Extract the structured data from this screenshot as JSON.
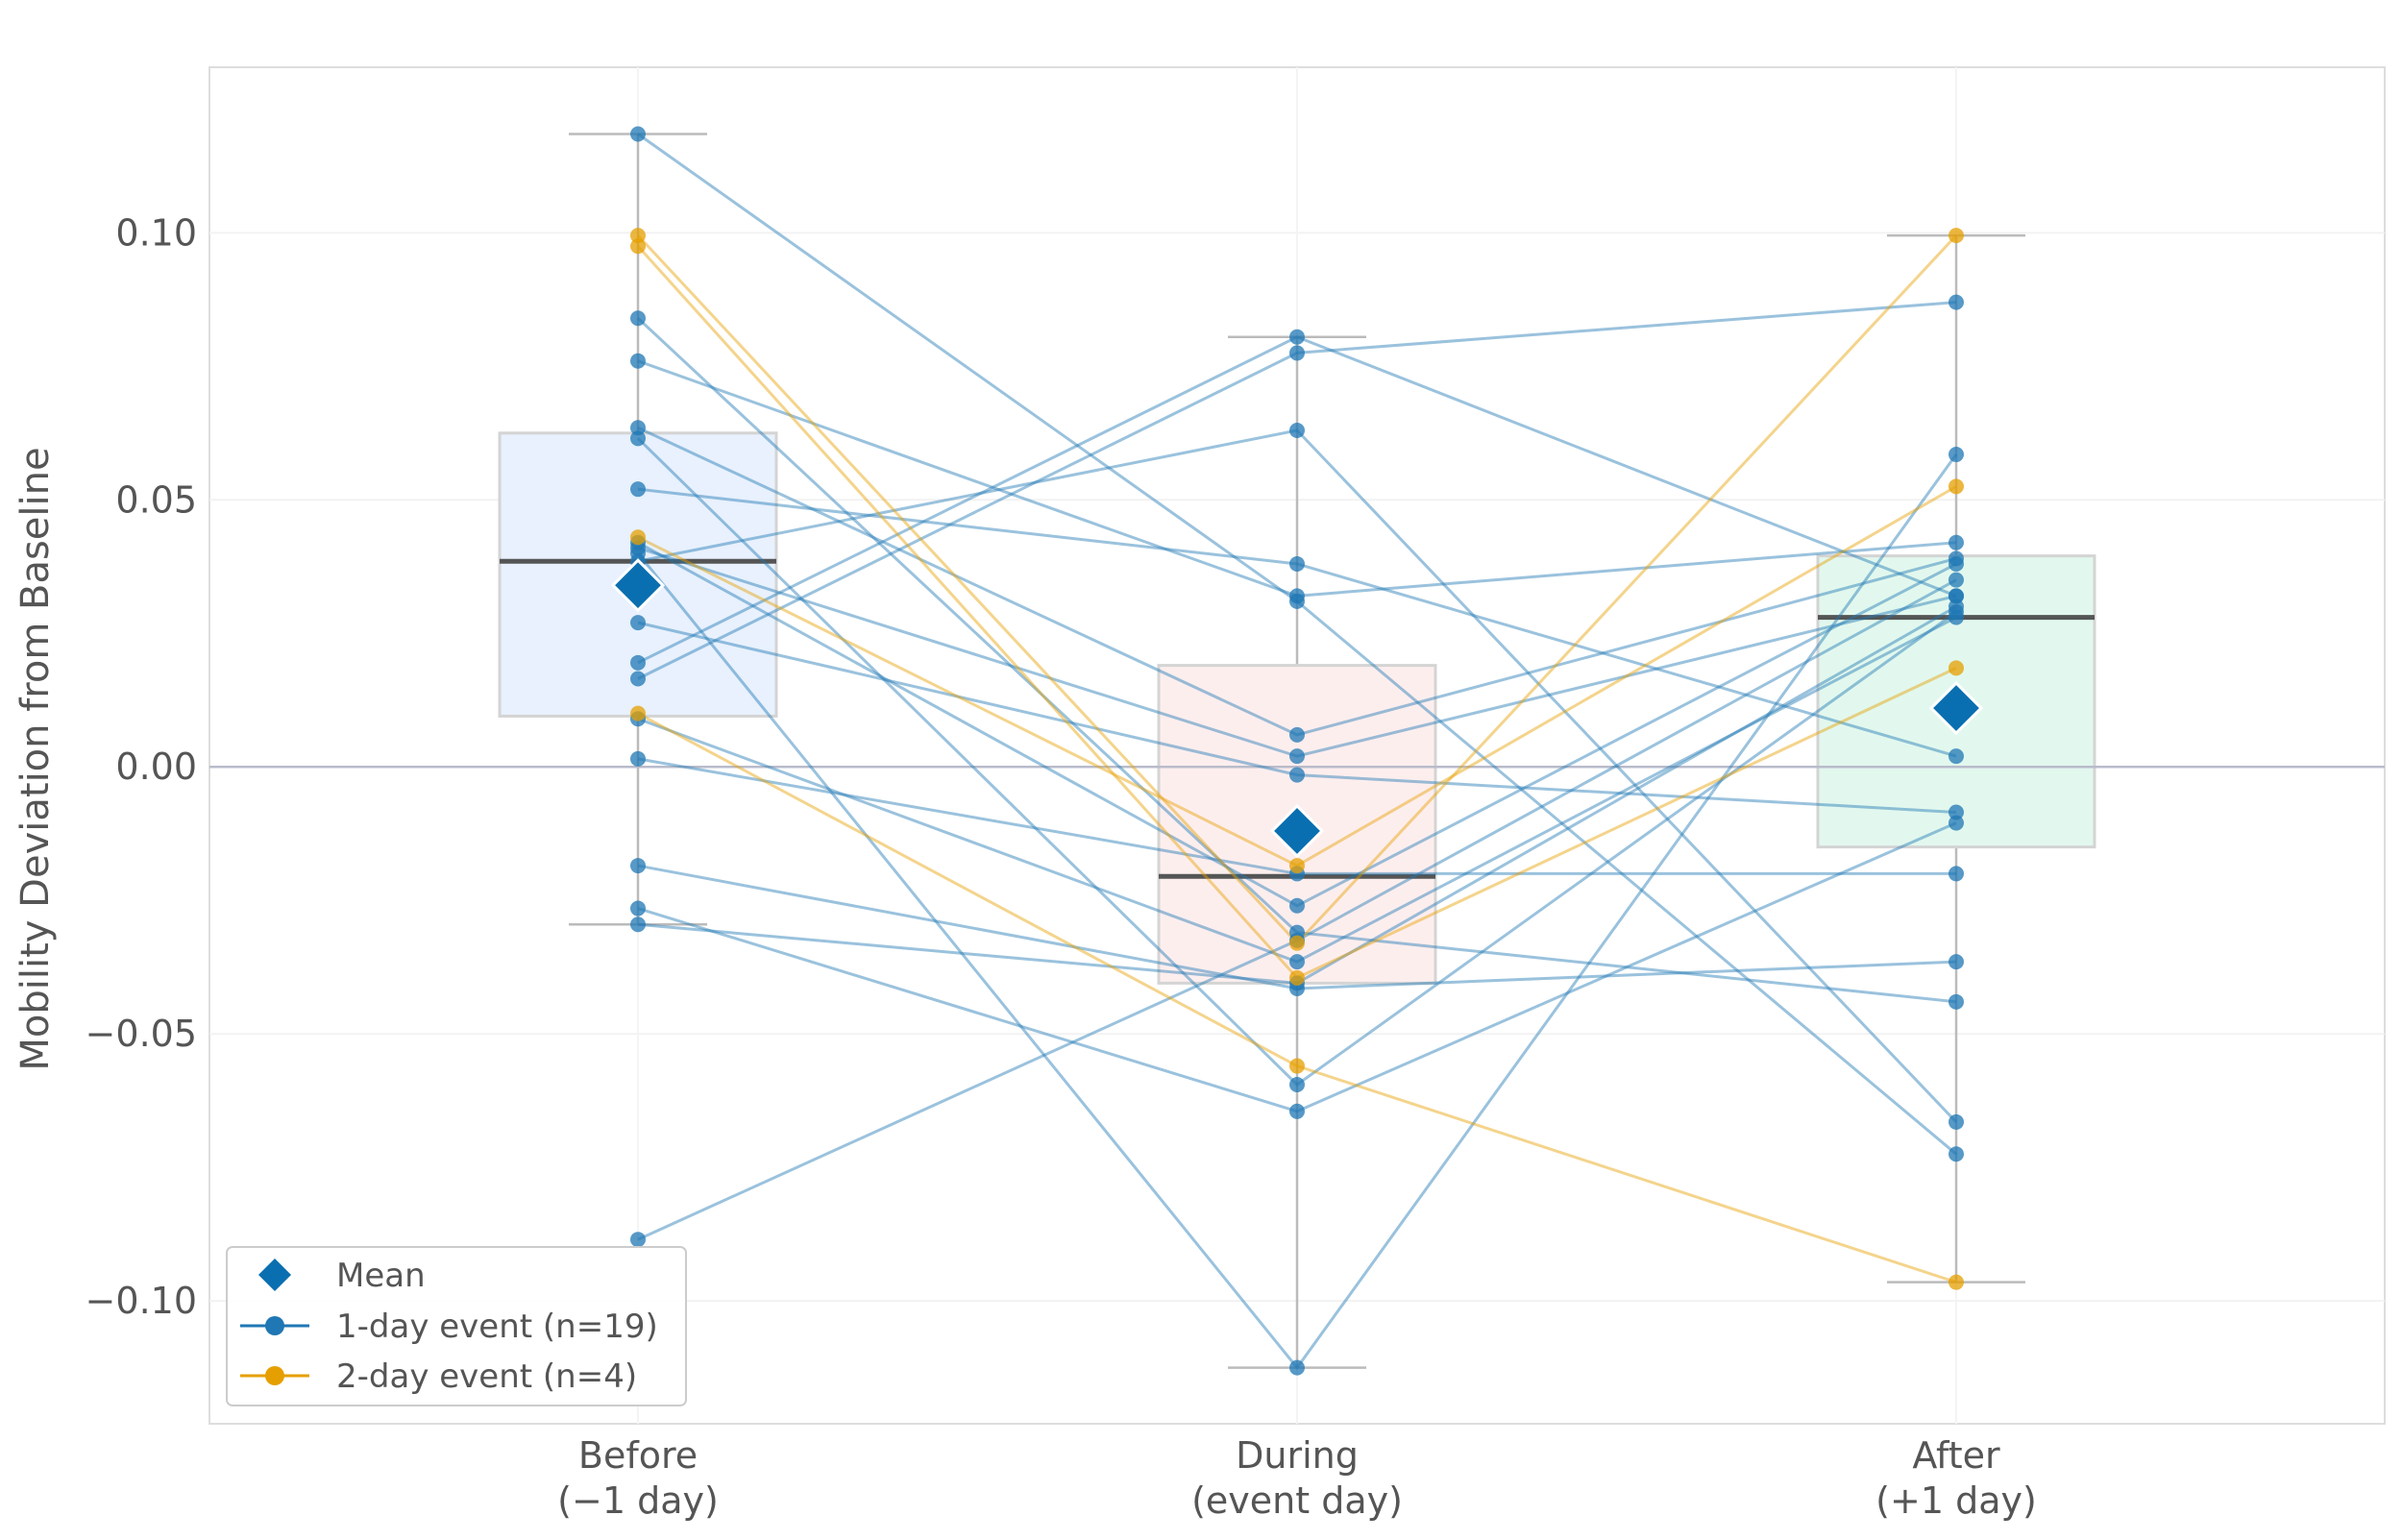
{
  "chart_data": {
    "type": "box-scatter",
    "title": "",
    "xlabel": "",
    "ylabel": "Mobility Deviation from Baseline",
    "ylim": [
      -0.123,
      0.131
    ],
    "yticks": [
      0.1,
      0.05,
      0.0,
      -0.05,
      -0.1
    ],
    "ytick_labels": [
      "0.10",
      "0.05",
      "0.00",
      "−0.05",
      "−0.10"
    ],
    "reference_line_y": 0.0,
    "grid": true,
    "legend_position": "lower-left",
    "categories": [
      {
        "line1": "Before",
        "line2": "(−1 day)"
      },
      {
        "line1": "During",
        "line2": "(event day)"
      },
      {
        "line1": "After",
        "line2": "(+1 day)"
      }
    ],
    "box_colors": [
      "#e8f1fd",
      "#fdeeee",
      "#e2f8ee"
    ],
    "boxes": [
      {
        "q1": 0.0095,
        "median": 0.0385,
        "q3": 0.0625,
        "whisker_low": -0.0295,
        "whisker_high": 0.1185,
        "mean": 0.034
      },
      {
        "q1": -0.0405,
        "median": -0.0205,
        "q3": 0.019,
        "whisker_low": -0.1125,
        "whisker_high": 0.0805,
        "mean": -0.012
      },
      {
        "q1": -0.015,
        "median": 0.028,
        "q3": 0.0395,
        "whisker_low": -0.0965,
        "whisker_high": 0.0995,
        "mean": 0.011
      }
    ],
    "series": [
      {
        "name": "1-day event (n=19)",
        "color": "#1f77b4",
        "values": [
          [
            0.1185,
            0.031,
            -0.0725
          ],
          [
            0.084,
            -0.031,
            -0.044
          ],
          [
            0.076,
            0.032,
            0.042
          ],
          [
            0.0635,
            0.006,
            0.039
          ],
          [
            0.0615,
            -0.0595,
            0.029
          ],
          [
            0.052,
            0.038,
            0.002
          ],
          [
            0.042,
            -0.026,
            0.038
          ],
          [
            0.041,
            0.002,
            0.032
          ],
          [
            0.027,
            -0.0015,
            -0.0085
          ],
          [
            0.0195,
            0.0805,
            0.032
          ],
          [
            0.0165,
            0.0775,
            0.087
          ],
          [
            0.009,
            -0.0365,
            0.028
          ],
          [
            0.0015,
            -0.02,
            -0.02
          ],
          [
            -0.0185,
            -0.0415,
            -0.0365
          ],
          [
            -0.0265,
            -0.0645,
            -0.0105
          ],
          [
            -0.0295,
            -0.0405,
            0.03
          ],
          [
            -0.0885,
            -0.0325,
            0.035
          ],
          [
            0.0385,
            0.063,
            -0.0665
          ],
          [
            0.04,
            -0.1125,
            0.0585
          ]
        ]
      },
      {
        "name": "2-day event (n=4)",
        "color": "#e69f00",
        "values": [
          [
            0.0995,
            -0.033,
            0.0995
          ],
          [
            0.0975,
            -0.0395,
            0.0185
          ],
          [
            0.043,
            -0.0185,
            0.0525
          ],
          [
            0.01,
            -0.056,
            -0.0965
          ]
        ]
      }
    ],
    "legend": {
      "mean_label": "Mean",
      "entries": [
        "1-day event (n=19)",
        "2-day event (n=4)"
      ]
    },
    "mean_color": "#0a6fb0"
  }
}
